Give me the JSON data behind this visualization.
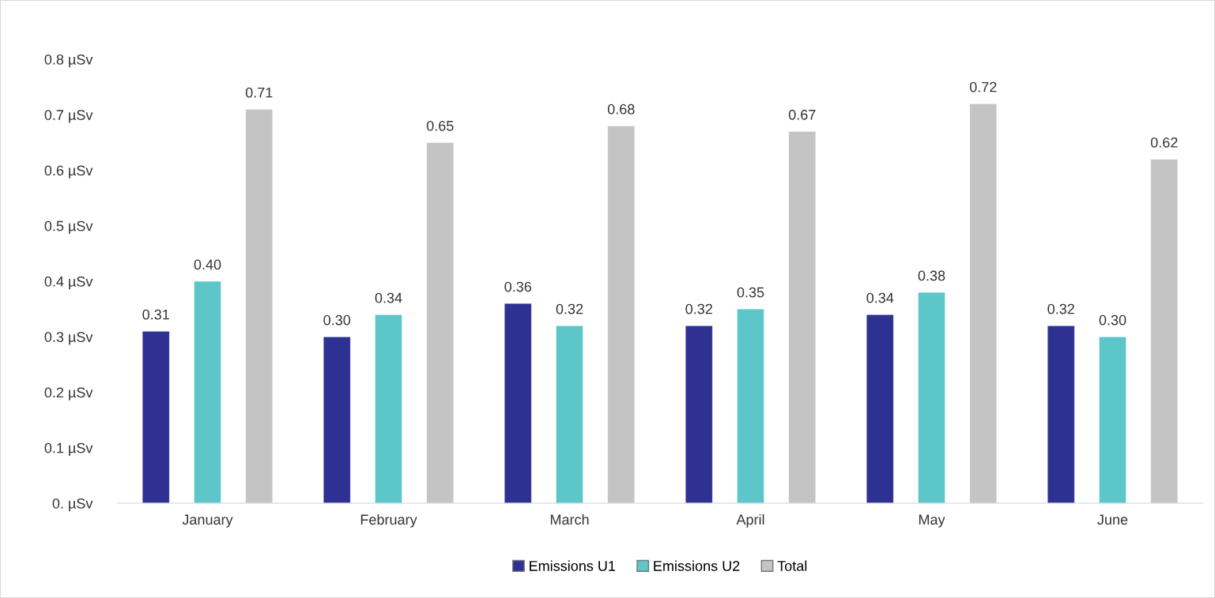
{
  "chart_data": {
    "type": "bar",
    "categories": [
      "January",
      "February",
      "March",
      "April",
      "May",
      "June"
    ],
    "series": [
      {
        "name": "Emissions U1",
        "color": "#2e3192",
        "values": [
          0.31,
          0.3,
          0.36,
          0.32,
          0.34,
          0.32
        ],
        "value_labels": [
          "0.31",
          "0.30",
          "0.36",
          "0.32",
          "0.34",
          "0.32"
        ]
      },
      {
        "name": "Emissions U2",
        "color": "#5cc6c8",
        "values": [
          0.4,
          0.34,
          0.32,
          0.35,
          0.38,
          0.3
        ],
        "value_labels": [
          "0.40",
          "0.34",
          "0.32",
          "0.35",
          "0.38",
          "0.30"
        ]
      },
      {
        "name": "Total",
        "color": "#c4c4c4",
        "values": [
          0.71,
          0.65,
          0.68,
          0.67,
          0.72,
          0.62
        ],
        "value_labels": [
          "0.71",
          "0.65",
          "0.68",
          "0.67",
          "0.72",
          "0.62"
        ]
      }
    ],
    "ylim": [
      0,
      0.8
    ],
    "yticks": [
      {
        "value": 0,
        "label": "0. µSv"
      },
      {
        "value": 0.1,
        "label": "0.1 µSv"
      },
      {
        "value": 0.2,
        "label": "0.2 µSv"
      },
      {
        "value": 0.3,
        "label": "0.3 µSv"
      },
      {
        "value": 0.4,
        "label": "0.4 µSv"
      },
      {
        "value": 0.5,
        "label": "0.5 µSv"
      },
      {
        "value": 0.6,
        "label": "0.6 µSv"
      },
      {
        "value": 0.7,
        "label": "0.7 µSv"
      },
      {
        "value": 0.8,
        "label": "0.8 µSv"
      }
    ],
    "grid": false,
    "legend": "bottom"
  }
}
